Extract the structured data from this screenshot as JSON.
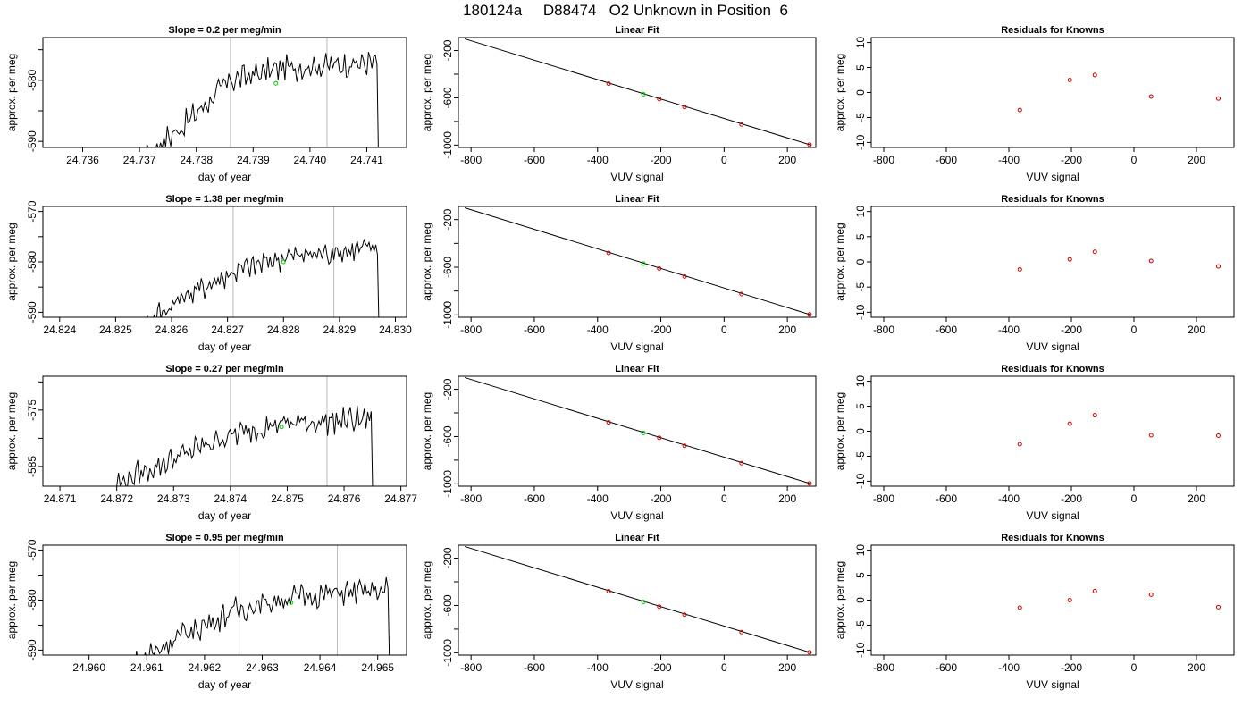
{
  "title": "180124a     D88474   O2 Unknown in Position  6",
  "colors": {
    "trace": "#000000",
    "known_points": "#cc0000",
    "unknown_point": "#00cc00",
    "vline": "#bbbbbb"
  },
  "chart_data": [
    {
      "type": "line",
      "panel": "time-series",
      "row": 1,
      "title": "Slope =  0.2  per meg/min",
      "xlabel": "day of year",
      "ylabel": "approx. per meg",
      "xlim": [
        24.7353,
        24.7417
      ],
      "ylim": [
        -591,
        -573
      ],
      "xticks": [
        24.736,
        24.737,
        24.738,
        24.739,
        24.74,
        24.741
      ],
      "xtick_labels": [
        "24.736",
        "24.737",
        "24.738",
        "24.739",
        "24.740",
        "24.741"
      ],
      "yticks": [
        -590,
        -585,
        -580,
        -575
      ],
      "ytick_labels": [
        "-590",
        "",
        "-580",
        ""
      ],
      "vlines": [
        24.7386,
        24.7403
      ],
      "trace_start": 24.7368,
      "trace_end": 24.7413,
      "trace_levels": [
        -594,
        -588,
        -580,
        -578,
        -577.5,
        -577
      ],
      "unknown_point": [
        24.7394,
        -580.5
      ]
    },
    {
      "type": "line",
      "panel": "time-series",
      "row": 2,
      "title": "Slope =  1.38  per meg/min",
      "xlabel": "day of year",
      "ylabel": "approx. per meg",
      "xlim": [
        24.8237,
        24.8302
      ],
      "ylim": [
        -591,
        -569
      ],
      "xticks": [
        24.824,
        24.825,
        24.826,
        24.827,
        24.828,
        24.829,
        24.83
      ],
      "xtick_labels": [
        "24.824",
        "24.825",
        "24.826",
        "24.827",
        "24.828",
        "24.829",
        "24.830"
      ],
      "yticks": [
        -590,
        -585,
        -580,
        -575,
        -570
      ],
      "ytick_labels": [
        "-590",
        "",
        "-580",
        "",
        "-570"
      ],
      "vlines": [
        24.8271,
        24.8289
      ],
      "trace_start": 24.8253,
      "trace_end": 24.8298,
      "trace_levels": [
        -594,
        -587,
        -582,
        -579,
        -578,
        -577
      ],
      "unknown_point": [
        24.828,
        -580
      ]
    },
    {
      "type": "line",
      "panel": "time-series",
      "row": 3,
      "title": "Slope =  0.27  per meg/min",
      "xlabel": "day of year",
      "ylabel": "approx. per meg",
      "xlim": [
        24.8707,
        24.8771
      ],
      "ylim": [
        -588.5,
        -569
      ],
      "xticks": [
        24.871,
        24.872,
        24.873,
        24.874,
        24.875,
        24.876,
        24.877
      ],
      "xtick_labels": [
        "24.871",
        "24.872",
        "24.873",
        "24.874",
        "24.875",
        "24.876",
        "24.877"
      ],
      "yticks": [
        -585,
        -580,
        -575,
        -570
      ],
      "ytick_labels": [
        "-585",
        "",
        "-575",
        ""
      ],
      "vlines": [
        24.874,
        24.8757
      ],
      "trace_start": 24.872,
      "trace_end": 24.8766,
      "trace_levels": [
        -588,
        -584,
        -580,
        -577.5,
        -577,
        -576.5
      ],
      "unknown_point": [
        24.8749,
        -578
      ]
    },
    {
      "type": "line",
      "panel": "time-series",
      "row": 4,
      "title": "Slope =  0.95  per meg/min",
      "xlabel": "day of year",
      "ylabel": "approx. per meg",
      "xlim": [
        24.9592,
        24.9655
      ],
      "ylim": [
        -591,
        -569
      ],
      "xticks": [
        24.96,
        24.961,
        24.962,
        24.963,
        24.964,
        24.965
      ],
      "xtick_labels": [
        "24.960",
        "24.961",
        "24.962",
        "24.963",
        "24.964",
        "24.965"
      ],
      "yticks": [
        -590,
        -585,
        -580,
        -575,
        -570
      ],
      "ytick_labels": [
        "-590",
        "",
        "-580",
        "",
        "-570"
      ],
      "vlines": [
        24.9626,
        24.9643
      ],
      "trace_start": 24.9607,
      "trace_end": 24.9653,
      "trace_levels": [
        -593,
        -587,
        -582,
        -579.5,
        -578.5,
        -578
      ],
      "unknown_point": [
        24.9635,
        -580.5
      ]
    },
    {
      "type": "scatter",
      "panel": "linear-fit",
      "rows": [
        1,
        2,
        3,
        4
      ],
      "title": "Linear Fit",
      "xlabel": "VUV signal",
      "ylabel": "approx. per meg",
      "xlim": [
        -840,
        290
      ],
      "ylim": [
        -1020,
        -90
      ],
      "xticks": [
        -800,
        -600,
        -400,
        -200,
        0,
        200
      ],
      "xtick_labels": [
        "-800",
        "-600",
        "-400",
        "-200",
        "0",
        "200"
      ],
      "yticks": [
        -1000,
        -800,
        -600,
        -400,
        -200
      ],
      "ytick_labels": [
        "-1000",
        "",
        "-600",
        "",
        "-200"
      ],
      "fit_line": {
        "x": [
          -820,
          275
        ],
        "y": [
          -101,
          -1000
        ]
      },
      "knowns": {
        "x": [
          -365,
          -205,
          -125,
          55,
          270
        ],
        "y": [
          -480,
          -611,
          -678,
          -825,
          -996
        ]
      },
      "unknown": {
        "x": [
          -255
        ],
        "y": [
          -570
        ]
      }
    },
    {
      "type": "scatter",
      "panel": "residuals",
      "row": 1,
      "title": "Residuals for Knowns",
      "xlabel": "VUV signal",
      "ylabel": "approx. per meg",
      "xlim": [
        -840,
        320
      ],
      "ylim": [
        -11,
        11
      ],
      "xticks": [
        -800,
        -600,
        -400,
        -200,
        0,
        200
      ],
      "xtick_labels": [
        "-800",
        "-600",
        "-400",
        "-200",
        "0",
        "200"
      ],
      "yticks": [
        -10,
        -5,
        0,
        5,
        10
      ],
      "ytick_labels": [
        "-10",
        "-5",
        "0",
        "5",
        "10"
      ],
      "x": [
        -365,
        -205,
        -125,
        55,
        270
      ],
      "y": [
        -3.5,
        2.5,
        3.5,
        -0.8,
        -1.2
      ]
    },
    {
      "type": "scatter",
      "panel": "residuals",
      "row": 2,
      "title": "Residuals for Knowns",
      "xlabel": "VUV signal",
      "ylabel": "approx. per meg",
      "xlim": [
        -840,
        320
      ],
      "ylim": [
        -11,
        11
      ],
      "xticks": [
        -800,
        -600,
        -400,
        -200,
        0,
        200
      ],
      "xtick_labels": [
        "-800",
        "-600",
        "-400",
        "-200",
        "0",
        "200"
      ],
      "yticks": [
        -10,
        -5,
        0,
        5,
        10
      ],
      "ytick_labels": [
        "-10",
        "-5",
        "0",
        "5",
        "10"
      ],
      "x": [
        -365,
        -205,
        -125,
        55,
        270
      ],
      "y": [
        -1.5,
        0.5,
        2.0,
        0.2,
        -0.9
      ]
    },
    {
      "type": "scatter",
      "panel": "residuals",
      "row": 3,
      "title": "Residuals for Knowns",
      "xlabel": "VUV signal",
      "ylabel": "approx. per meg",
      "xlim": [
        -840,
        320
      ],
      "ylim": [
        -11,
        11
      ],
      "xticks": [
        -800,
        -600,
        -400,
        -200,
        0,
        200
      ],
      "xtick_labels": [
        "-800",
        "-600",
        "-400",
        "-200",
        "0",
        "200"
      ],
      "yticks": [
        -10,
        -5,
        0,
        5,
        10
      ],
      "ytick_labels": [
        "-10",
        "-5",
        "0",
        "5",
        "10"
      ],
      "x": [
        -365,
        -205,
        -125,
        55,
        270
      ],
      "y": [
        -2.6,
        1.5,
        3.2,
        -0.8,
        -0.9
      ]
    },
    {
      "type": "scatter",
      "panel": "residuals",
      "row": 4,
      "title": "Residuals for Knowns",
      "xlabel": "VUV signal",
      "ylabel": "approx. per meg",
      "xlim": [
        -840,
        320
      ],
      "ylim": [
        -11,
        11
      ],
      "xticks": [
        -800,
        -600,
        -400,
        -200,
        0,
        200
      ],
      "xtick_labels": [
        "-800",
        "-600",
        "-400",
        "-200",
        "0",
        "200"
      ],
      "yticks": [
        -10,
        -5,
        0,
        5,
        10
      ],
      "ytick_labels": [
        "-10",
        "-5",
        "0",
        "5",
        "10"
      ],
      "x": [
        -365,
        -205,
        -125,
        55,
        270
      ],
      "y": [
        -1.5,
        0.0,
        1.8,
        1.1,
        -1.4
      ]
    }
  ]
}
